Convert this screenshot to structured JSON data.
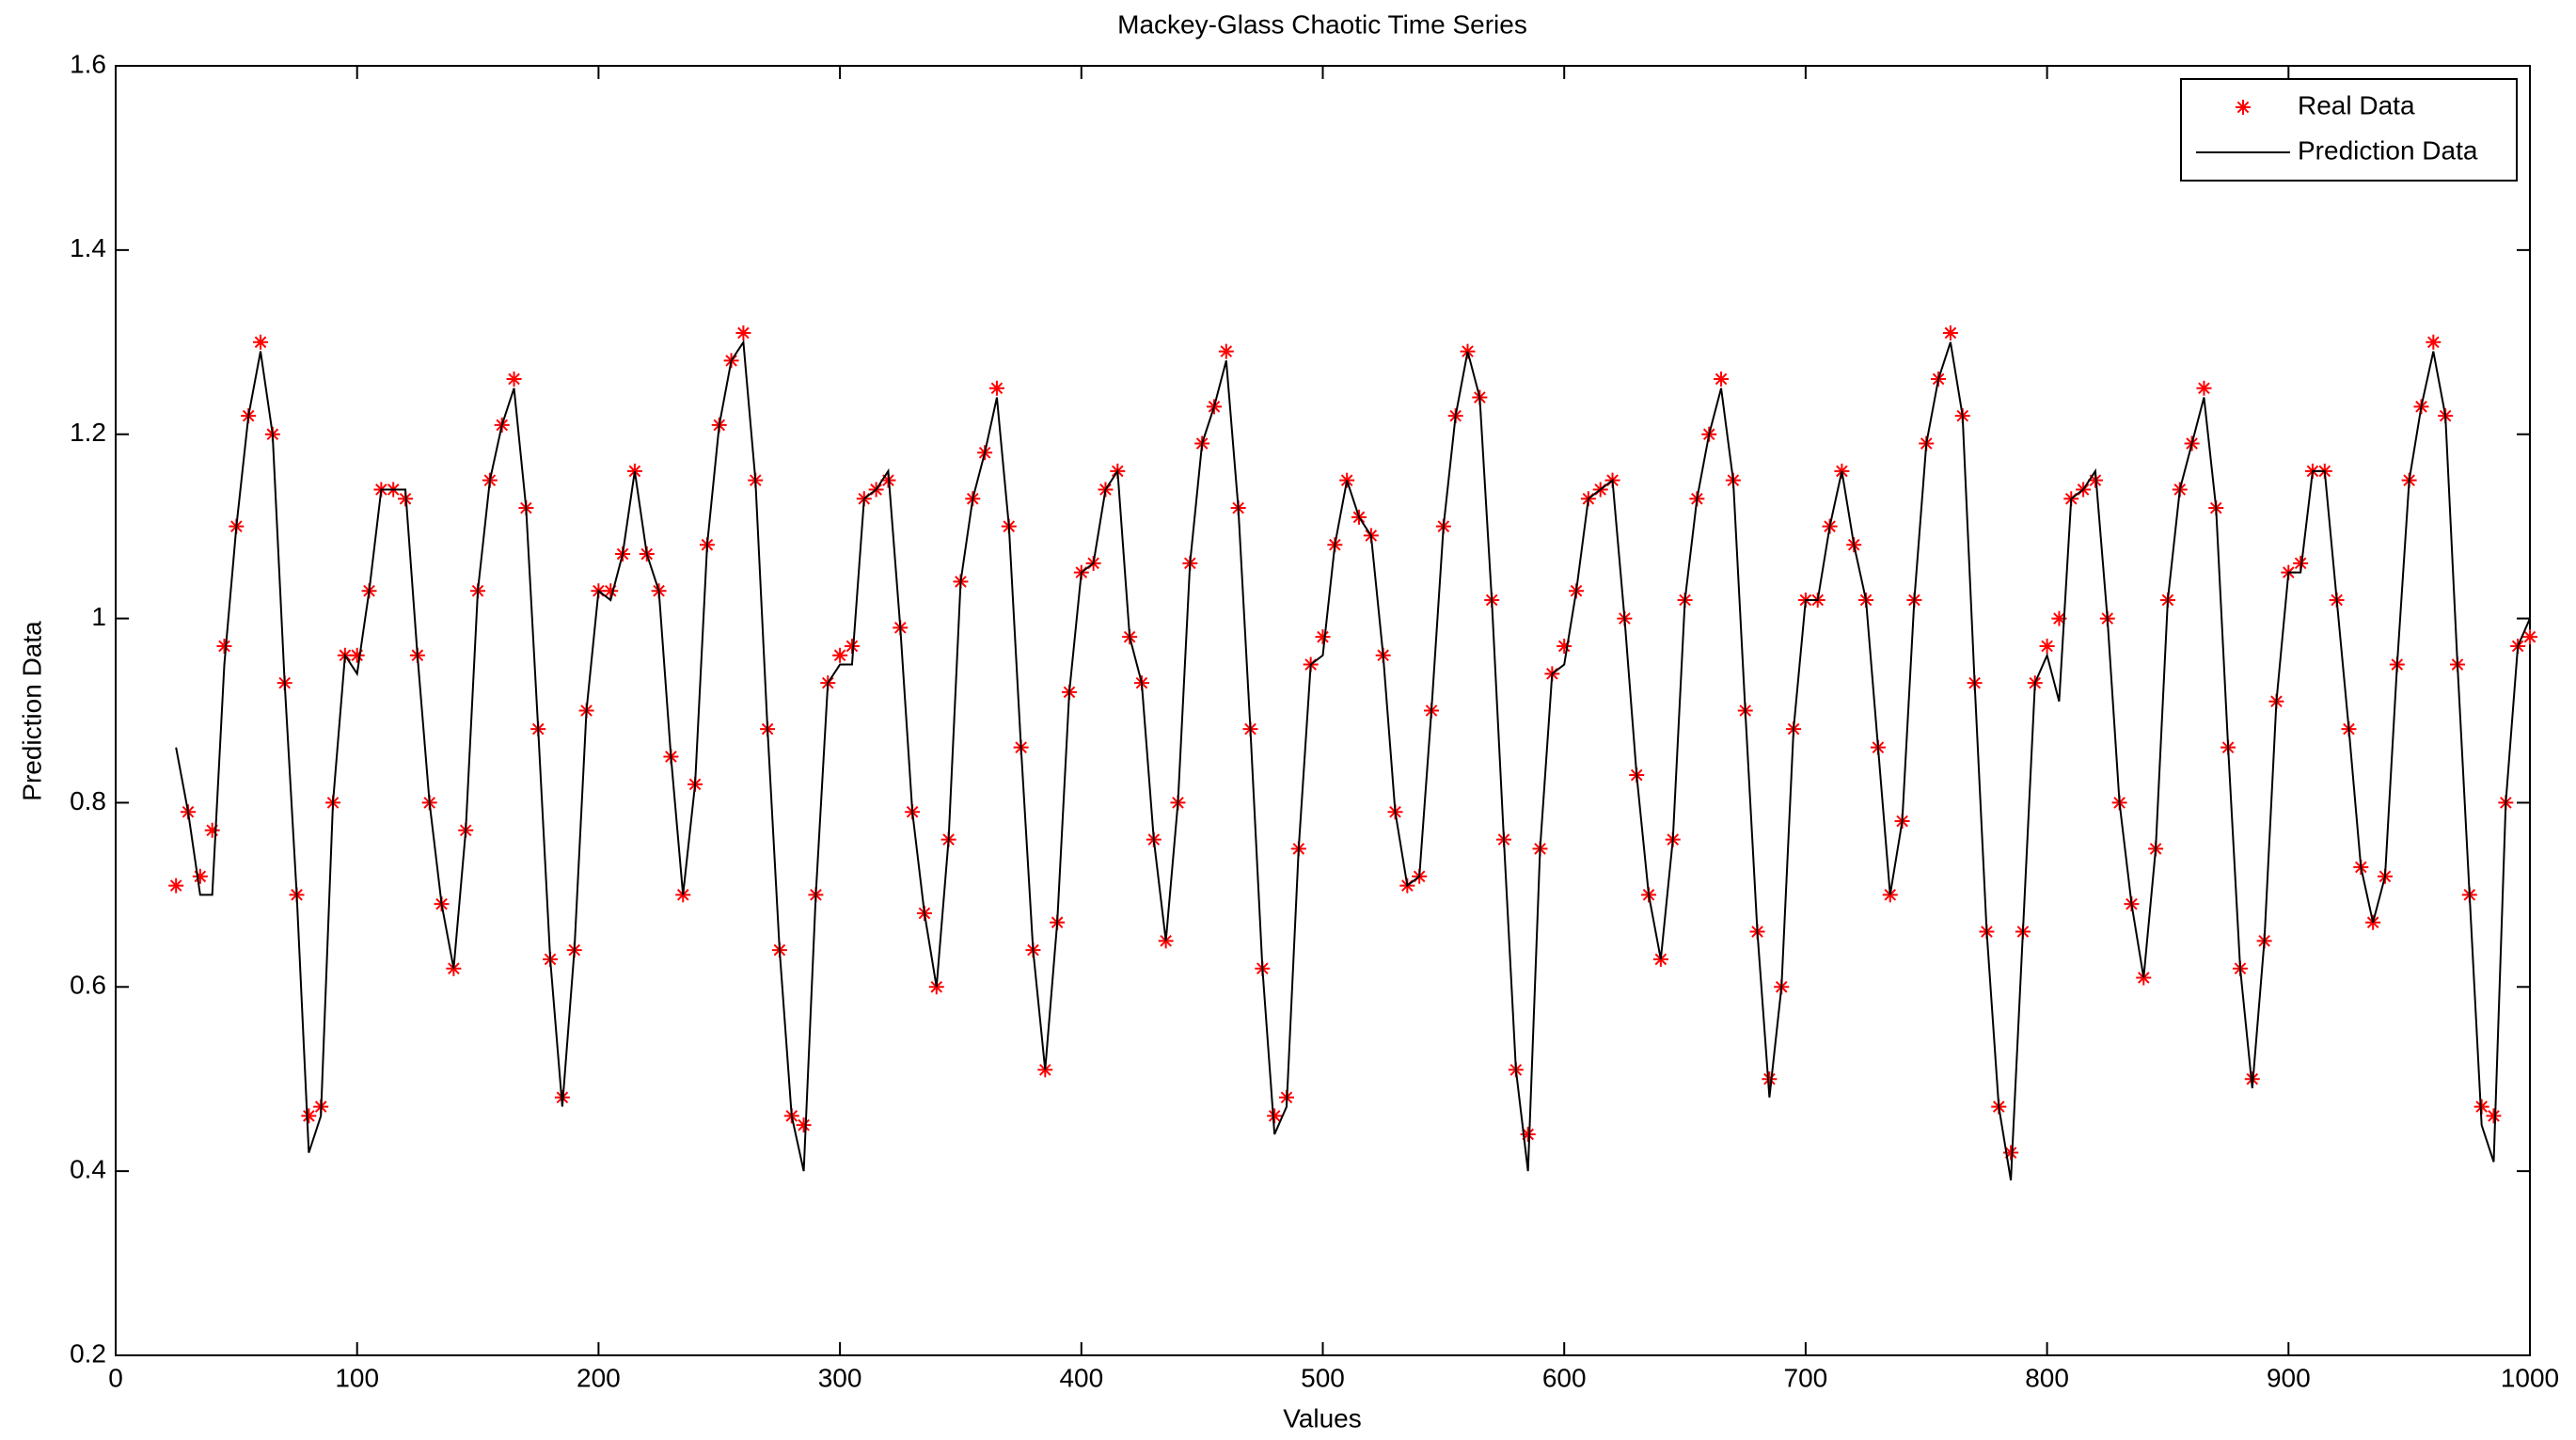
{
  "chart_data": {
    "type": "line",
    "title": "Mackey-Glass Chaotic Time Series",
    "x_label": "Values",
    "y_label": "Prediction Data",
    "x": [
      25,
      30,
      35,
      40,
      45,
      50,
      55,
      60,
      65,
      70,
      75,
      80,
      85,
      90,
      95,
      100,
      105,
      110,
      115,
      120,
      125,
      130,
      135,
      140,
      145,
      150,
      155,
      160,
      165,
      170,
      175,
      180,
      185,
      190,
      195,
      200,
      205,
      210,
      215,
      220,
      225,
      230,
      235,
      240,
      245,
      250,
      255,
      260,
      265,
      270,
      275,
      280,
      285,
      290,
      295,
      300,
      305,
      310,
      315,
      320,
      325,
      330,
      335,
      340,
      345,
      350,
      355,
      360,
      365,
      370,
      375,
      380,
      385,
      390,
      395,
      400,
      405,
      410,
      415,
      420,
      425,
      430,
      435,
      440,
      445,
      450,
      455,
      460,
      465,
      470,
      475,
      480,
      485,
      490,
      495,
      500,
      505,
      510,
      515,
      520,
      525,
      530,
      535,
      540,
      545,
      550,
      555,
      560,
      565,
      570,
      575,
      580,
      585,
      590,
      595,
      600,
      605,
      610,
      615,
      620,
      625,
      630,
      635,
      640,
      645,
      650,
      655,
      660,
      665,
      670,
      675,
      680,
      685,
      690,
      695,
      700,
      705,
      710,
      715,
      720,
      725,
      730,
      735,
      740,
      745,
      750,
      755,
      760,
      765,
      770,
      775,
      780,
      785,
      790,
      795,
      800,
      805,
      810,
      815,
      820,
      825,
      830,
      835,
      840,
      845,
      850,
      855,
      860,
      865,
      870,
      875,
      880,
      885,
      890,
      895,
      900,
      905,
      910,
      915,
      920,
      925,
      930,
      935,
      940,
      945,
      950,
      955,
      960,
      965,
      970,
      975,
      980,
      985,
      990,
      995,
      1000
    ],
    "series": [
      {
        "name": "Real Data",
        "color": "#ff0000",
        "marker": "star",
        "values": [
          0.71,
          0.79,
          0.72,
          0.77,
          0.97,
          1.1,
          1.22,
          1.3,
          1.2,
          0.93,
          0.7,
          0.46,
          0.47,
          0.8,
          0.96,
          0.96,
          1.03,
          1.14,
          1.14,
          1.13,
          0.96,
          0.8,
          0.69,
          0.62,
          0.77,
          1.03,
          1.15,
          1.21,
          1.26,
          1.12,
          0.88,
          0.63,
          0.48,
          0.64,
          0.9,
          1.03,
          1.03,
          1.07,
          1.16,
          1.07,
          1.03,
          0.85,
          0.7,
          0.82,
          1.08,
          1.21,
          1.28,
          1.31,
          1.15,
          0.88,
          0.64,
          0.46,
          0.45,
          0.7,
          0.93,
          0.96,
          0.97,
          1.13,
          1.14,
          1.15,
          0.99,
          0.79,
          0.68,
          0.6,
          0.76,
          1.04,
          1.13,
          1.18,
          1.25,
          1.1,
          0.86,
          0.64,
          0.51,
          0.67,
          0.92,
          1.05,
          1.06,
          1.14,
          1.16,
          0.98,
          0.93,
          0.76,
          0.65,
          0.8,
          1.06,
          1.19,
          1.23,
          1.29,
          1.12,
          0.88,
          0.62,
          0.46,
          0.48,
          0.75,
          0.95,
          0.98,
          1.08,
          1.15,
          1.11,
          1.09,
          0.96,
          0.79,
          0.71,
          0.72,
          0.9,
          1.1,
          1.22,
          1.29,
          1.24,
          1.02,
          0.76,
          0.51,
          0.44,
          0.75,
          0.94,
          0.97,
          1.03,
          1.13,
          1.14,
          1.15,
          1.0,
          0.83,
          0.7,
          0.63,
          0.76,
          1.02,
          1.13,
          1.2,
          1.26,
          1.15,
          0.9,
          0.66,
          0.5,
          0.6,
          0.88,
          1.02,
          1.02,
          1.1,
          1.16,
          1.08,
          1.02,
          0.86,
          0.7,
          0.78,
          1.02,
          1.19,
          1.26,
          1.31,
          1.22,
          0.93,
          0.66,
          0.47,
          0.42,
          0.66,
          0.93,
          0.97,
          1.0,
          1.13,
          1.14,
          1.15,
          1.0,
          0.8,
          0.69,
          0.61,
          0.75,
          1.02,
          1.14,
          1.19,
          1.25,
          1.12,
          0.86,
          0.62,
          0.5,
          0.65,
          0.91,
          1.05,
          1.06,
          1.16,
          1.16,
          1.02,
          0.88,
          0.73,
          0.67,
          0.72,
          0.95,
          1.15,
          1.23,
          1.3,
          1.22,
          0.95,
          0.7,
          0.47,
          0.46,
          0.8,
          0.97,
          0.98
        ]
      },
      {
        "name": "Prediction Data",
        "color": "#000000",
        "marker": "line",
        "values": [
          0.86,
          0.79,
          0.7,
          0.7,
          0.95,
          1.1,
          1.22,
          1.29,
          1.2,
          0.93,
          0.7,
          0.42,
          0.46,
          0.8,
          0.96,
          0.94,
          1.03,
          1.14,
          1.14,
          1.14,
          0.96,
          0.8,
          0.69,
          0.62,
          0.77,
          1.03,
          1.15,
          1.21,
          1.25,
          1.12,
          0.88,
          0.63,
          0.47,
          0.64,
          0.9,
          1.03,
          1.02,
          1.07,
          1.16,
          1.07,
          1.03,
          0.85,
          0.7,
          0.82,
          1.08,
          1.21,
          1.28,
          1.3,
          1.15,
          0.88,
          0.64,
          0.46,
          0.4,
          0.7,
          0.93,
          0.95,
          0.95,
          1.13,
          1.14,
          1.16,
          0.99,
          0.79,
          0.68,
          0.6,
          0.76,
          1.04,
          1.13,
          1.18,
          1.24,
          1.1,
          0.86,
          0.64,
          0.51,
          0.67,
          0.92,
          1.05,
          1.06,
          1.14,
          1.16,
          0.98,
          0.93,
          0.76,
          0.65,
          0.8,
          1.06,
          1.19,
          1.23,
          1.28,
          1.12,
          0.88,
          0.62,
          0.44,
          0.47,
          0.75,
          0.95,
          0.96,
          1.08,
          1.15,
          1.11,
          1.09,
          0.96,
          0.79,
          0.71,
          0.72,
          0.9,
          1.1,
          1.22,
          1.29,
          1.24,
          1.02,
          0.76,
          0.51,
          0.4,
          0.75,
          0.94,
          0.95,
          1.03,
          1.13,
          1.14,
          1.15,
          1.0,
          0.83,
          0.7,
          0.63,
          0.76,
          1.02,
          1.13,
          1.2,
          1.25,
          1.15,
          0.9,
          0.66,
          0.48,
          0.6,
          0.88,
          1.02,
          1.02,
          1.1,
          1.16,
          1.08,
          1.02,
          0.86,
          0.7,
          0.78,
          1.02,
          1.19,
          1.26,
          1.3,
          1.22,
          0.93,
          0.66,
          0.47,
          0.39,
          0.66,
          0.93,
          0.96,
          0.91,
          1.13,
          1.14,
          1.16,
          1.0,
          0.8,
          0.69,
          0.61,
          0.75,
          1.02,
          1.14,
          1.19,
          1.24,
          1.12,
          0.86,
          0.62,
          0.49,
          0.65,
          0.91,
          1.05,
          1.05,
          1.16,
          1.16,
          1.02,
          0.88,
          0.73,
          0.67,
          0.72,
          0.95,
          1.15,
          1.23,
          1.29,
          1.22,
          0.95,
          0.7,
          0.45,
          0.41,
          0.8,
          0.97,
          1.0
        ]
      }
    ],
    "xlim": [
      0,
      1000
    ],
    "ylim": [
      0.2,
      1.6
    ],
    "xticks": [
      0,
      100,
      200,
      300,
      400,
      500,
      600,
      700,
      800,
      900,
      1000
    ],
    "yticks": [
      0.2,
      0.4,
      0.6,
      0.8,
      1,
      1.2,
      1.4,
      1.6
    ],
    "legend": "upper right"
  }
}
